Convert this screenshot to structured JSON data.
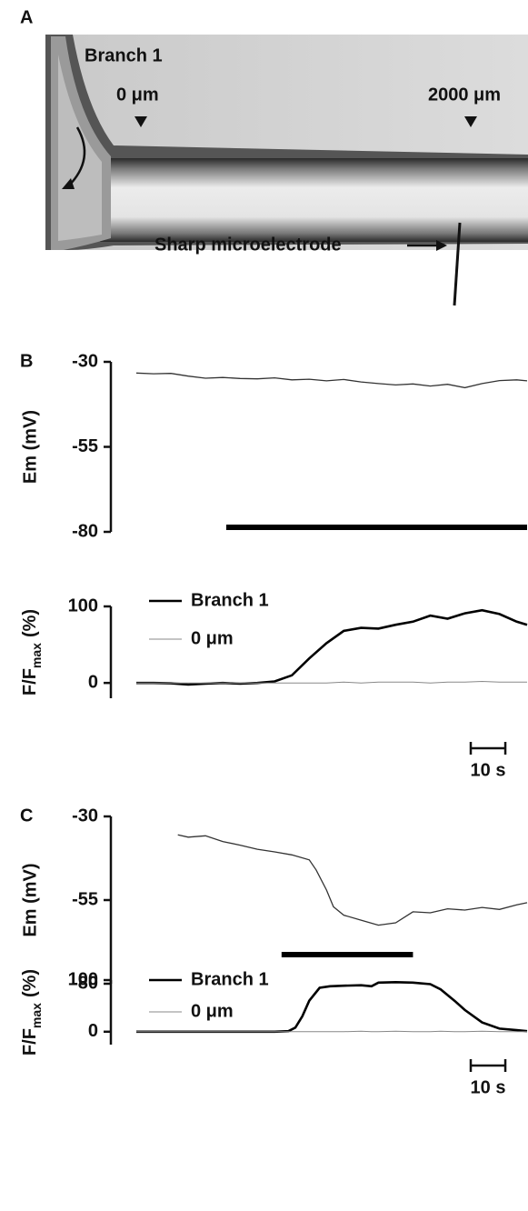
{
  "panel_a": {
    "panel": "A",
    "branch": "Branch 1",
    "marker_0": "0 μm",
    "marker_2000": "2000 μm",
    "electrode": "Sharp microelectrode"
  },
  "chart_data": [
    {
      "type": "line",
      "panel": "B",
      "ylabel": "Em (mV)",
      "x": [
        0,
        5,
        10,
        15,
        20,
        25,
        30,
        35,
        40,
        45,
        50,
        55,
        60,
        65,
        70,
        75,
        80,
        85,
        90,
        95,
        100,
        105,
        110,
        113
      ],
      "values": [
        -33.3,
        -33.5,
        -33.4,
        -34.2,
        -34.8,
        -34.6,
        -34.9,
        -35.0,
        -34.7,
        -35.3,
        -35.1,
        -35.6,
        -35.2,
        -35.9,
        -36.4,
        -36.8,
        -36.5,
        -37.1,
        -36.6,
        -37.6,
        -36.4,
        -35.5,
        -35.3,
        -35.6
      ],
      "color": "#333",
      "xlim": [
        0,
        113
      ],
      "ylim": [
        -80,
        -30
      ],
      "yticks": [
        -30,
        -55,
        -80
      ],
      "stimulus": [
        26,
        113
      ]
    },
    {
      "type": "line",
      "ylabel": [
        "F/F",
        "max",
        "(%)"
      ],
      "x": [
        0,
        5,
        10,
        15,
        20,
        25,
        30,
        35,
        40,
        45,
        50,
        55,
        60,
        65,
        70,
        75,
        80,
        85,
        90,
        95,
        100,
        105,
        110,
        113
      ],
      "series": [
        {
          "name": "Branch 1",
          "color": "#000",
          "values": [
            0,
            0,
            -0.5,
            -2,
            -1,
            0,
            -1,
            0,
            2,
            10,
            32,
            52,
            68,
            72,
            71,
            76,
            80,
            88,
            84,
            91,
            95,
            90,
            80,
            76
          ]
        },
        {
          "name": "0 μm",
          "color": "#888",
          "values": [
            0,
            0,
            0,
            0,
            0,
            0,
            0,
            0,
            0,
            0,
            0,
            0,
            1,
            0,
            1,
            1,
            1,
            0,
            1,
            1,
            2,
            1,
            1,
            1
          ]
        }
      ],
      "xlim": [
        0,
        113
      ],
      "ylim": [
        -20,
        100
      ],
      "yticks": [
        0,
        100
      ],
      "scalebar": {
        "value": 10,
        "label": "10 s"
      }
    },
    {
      "type": "line",
      "panel": "C",
      "ylabel": "Em (mV)",
      "x": [
        12,
        15,
        20,
        25,
        30,
        35,
        40,
        45,
        50,
        52,
        55,
        57,
        60,
        65,
        70,
        75,
        80,
        85,
        90,
        95,
        100,
        105,
        110,
        113
      ],
      "values": [
        -35.5,
        -36.2,
        -35.8,
        -37.5,
        -38.6,
        -39.8,
        -40.6,
        -41.5,
        -43,
        -46,
        -52,
        -57,
        -59.5,
        -61,
        -62.5,
        -61.8,
        -58.5,
        -58.8,
        -57.6,
        -58,
        -57.2,
        -57.8,
        -56.4,
        -55.8
      ],
      "color": "#333",
      "xlim": [
        0,
        113
      ],
      "ylim": [
        -80,
        -30
      ],
      "yticks": [
        -30,
        -55,
        -80
      ],
      "stimulus": [
        42,
        80
      ]
    },
    {
      "type": "line",
      "ylabel": [
        "F/F",
        "max",
        "(%)"
      ],
      "x": [
        0,
        10,
        20,
        30,
        40,
        44,
        46,
        48,
        50,
        53,
        56,
        60,
        65,
        68,
        70,
        75,
        80,
        85,
        88,
        92,
        95,
        100,
        105,
        110,
        113
      ],
      "series": [
        {
          "name": "Branch 1",
          "color": "#000",
          "values": [
            0,
            0,
            0,
            0,
            0,
            1,
            8,
            30,
            60,
            85,
            88,
            89,
            90,
            88,
            95,
            96,
            95,
            92,
            82,
            60,
            42,
            18,
            6,
            3,
            1
          ]
        },
        {
          "name": "0 μm",
          "color": "#888",
          "values": [
            0,
            0,
            0,
            0,
            0,
            0,
            0,
            0,
            0,
            0,
            0,
            0,
            1,
            0,
            0,
            1,
            0,
            0,
            1,
            0,
            0,
            1,
            0,
            0,
            0
          ]
        }
      ],
      "xlim": [
        0,
        113
      ],
      "ylim": [
        -25,
        100
      ],
      "yticks": [
        0,
        100
      ],
      "scalebar": {
        "value": 10,
        "label": "10 s"
      }
    }
  ]
}
